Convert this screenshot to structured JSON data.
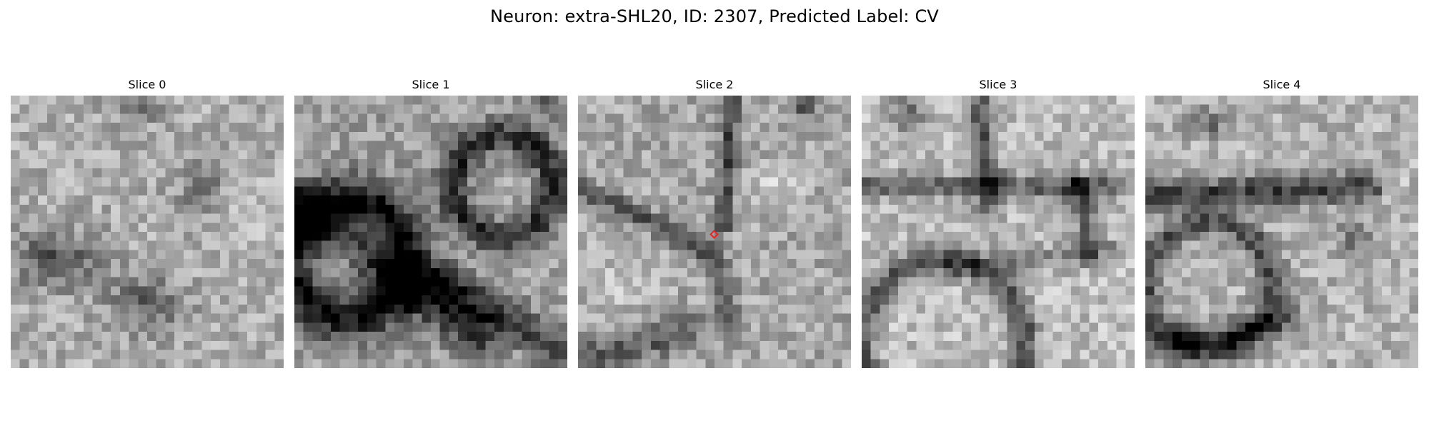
{
  "figure": {
    "title": "Neuron: extra-SHL20, ID: 2307, Predicted Label: CV"
  },
  "slices": [
    {
      "title": "Slice 0"
    },
    {
      "title": "Slice 1"
    },
    {
      "title": "Slice 2"
    },
    {
      "title": "Slice 3"
    },
    {
      "title": "Slice 4"
    }
  ],
  "marker": {
    "color": "#ff1a1a",
    "slice_index": 2
  },
  "colors": {
    "background": "#ffffff",
    "colormap": "grayscale"
  }
}
